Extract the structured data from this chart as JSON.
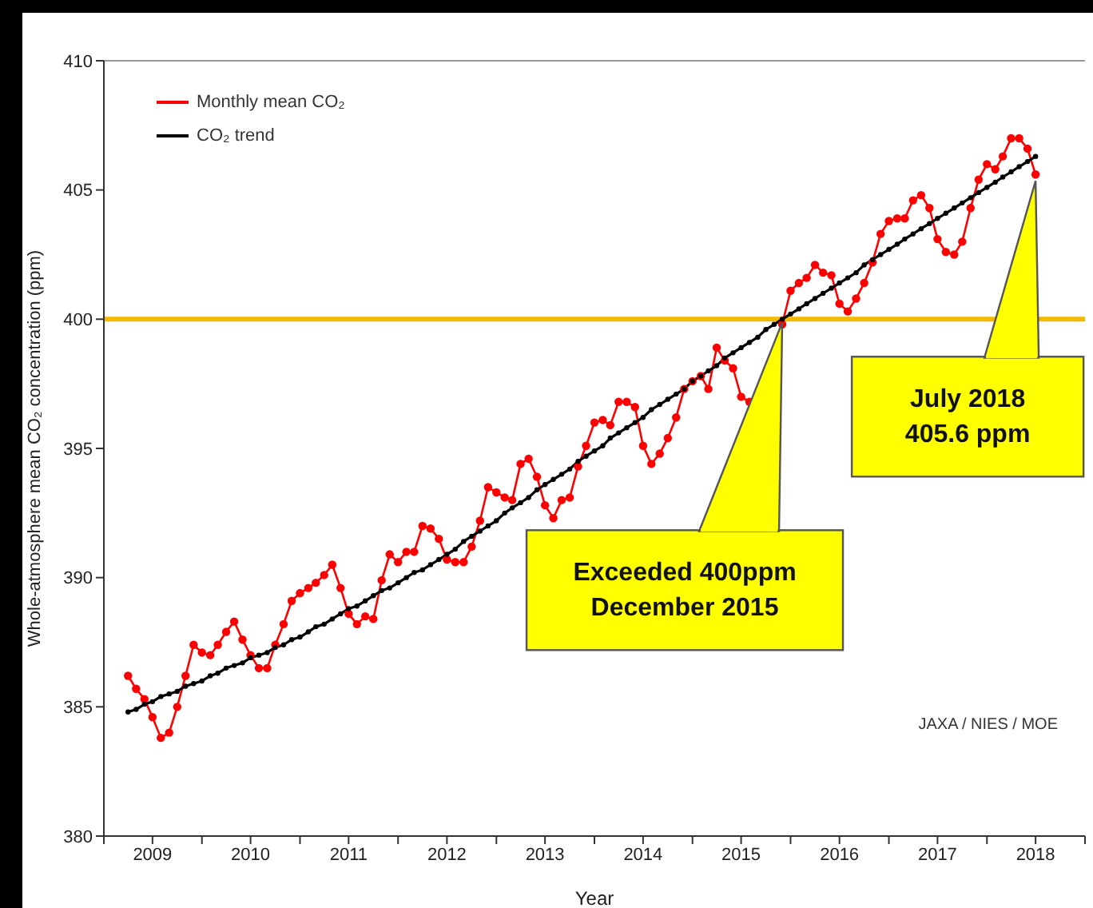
{
  "chart_data": {
    "type": "line",
    "xlabel": "Year",
    "ylabel": "Whole-atmosphere mean CO₂ concentration (ppm)",
    "x": [
      "2009-04",
      "2009-05",
      "2009-06",
      "2009-07",
      "2009-08",
      "2009-09",
      "2009-10",
      "2009-11",
      "2009-12",
      "2010-01",
      "2010-02",
      "2010-03",
      "2010-04",
      "2010-05",
      "2010-06",
      "2010-07",
      "2010-08",
      "2010-09",
      "2010-10",
      "2010-11",
      "2010-12",
      "2011-01",
      "2011-02",
      "2011-03",
      "2011-04",
      "2011-05",
      "2011-06",
      "2011-07",
      "2011-08",
      "2011-09",
      "2011-10",
      "2011-11",
      "2011-12",
      "2012-01",
      "2012-02",
      "2012-03",
      "2012-04",
      "2012-05",
      "2012-06",
      "2012-07",
      "2012-08",
      "2012-09",
      "2012-10",
      "2012-11",
      "2012-12",
      "2013-01",
      "2013-02",
      "2013-03",
      "2013-04",
      "2013-05",
      "2013-06",
      "2013-07",
      "2013-08",
      "2013-09",
      "2013-10",
      "2013-11",
      "2013-12",
      "2014-01",
      "2014-02",
      "2014-03",
      "2014-04",
      "2014-05",
      "2014-06",
      "2014-07",
      "2014-08",
      "2014-09",
      "2014-10",
      "2014-11",
      "2014-12",
      "2015-01",
      "2015-02",
      "2015-03",
      "2015-04",
      "2015-05",
      "2015-06",
      "2015-07",
      "2015-08",
      "2015-09",
      "2015-10",
      "2015-11",
      "2015-12",
      "2016-01",
      "2016-02",
      "2016-03",
      "2016-04",
      "2016-05",
      "2016-06",
      "2016-07",
      "2016-08",
      "2016-09",
      "2016-10",
      "2016-11",
      "2016-12",
      "2017-01",
      "2017-02",
      "2017-03",
      "2017-04",
      "2017-05",
      "2017-06",
      "2017-07",
      "2017-08",
      "2017-09",
      "2017-10",
      "2017-11",
      "2017-12",
      "2018-01",
      "2018-02",
      "2018-03",
      "2018-04",
      "2018-05",
      "2018-06",
      "2018-07"
    ],
    "series": [
      {
        "name": "Monthly mean CO₂",
        "color": "#ff0000",
        "values": [
          386.2,
          385.7,
          385.3,
          384.6,
          383.8,
          384.0,
          385.0,
          386.2,
          387.4,
          387.1,
          387.0,
          387.4,
          387.9,
          388.3,
          387.6,
          387.0,
          386.5,
          386.5,
          387.4,
          388.2,
          389.1,
          389.4,
          389.6,
          389.8,
          390.1,
          390.5,
          389.6,
          388.6,
          388.2,
          388.5,
          388.4,
          389.9,
          390.9,
          390.6,
          391.0,
          391.0,
          392.0,
          391.9,
          391.5,
          390.7,
          390.6,
          390.6,
          391.2,
          392.2,
          393.5,
          393.3,
          393.1,
          393.0,
          394.4,
          394.6,
          393.9,
          392.8,
          392.3,
          393.0,
          393.1,
          394.3,
          395.1,
          396.0,
          396.1,
          395.9,
          396.8,
          396.8,
          396.6,
          395.1,
          394.4,
          394.8,
          395.4,
          396.2,
          397.3,
          397.6,
          397.8,
          397.3,
          398.9,
          398.4,
          398.1,
          397.0,
          396.8,
          null,
          null,
          null,
          399.8,
          401.1,
          401.4,
          401.6,
          402.1,
          401.8,
          401.7,
          400.6,
          400.3,
          400.8,
          401.4,
          402.2,
          403.3,
          403.8,
          403.9,
          403.9,
          404.6,
          404.8,
          404.3,
          403.1,
          402.6,
          402.5,
          403.0,
          404.3,
          405.4,
          406.0,
          405.8,
          406.3,
          407.0,
          407.0,
          406.6,
          405.6
        ]
      },
      {
        "name": "CO₂ trend",
        "color": "#000000",
        "values": [
          384.8,
          384.9,
          385.1,
          385.2,
          385.4,
          385.5,
          385.6,
          385.8,
          385.9,
          386.0,
          386.2,
          386.3,
          386.5,
          386.6,
          386.7,
          386.9,
          387.0,
          387.1,
          387.3,
          387.4,
          387.6,
          387.7,
          387.9,
          388.1,
          388.2,
          388.4,
          388.6,
          388.8,
          388.9,
          389.1,
          389.3,
          389.5,
          389.6,
          389.8,
          390.0,
          390.2,
          390.3,
          390.5,
          390.7,
          390.9,
          391.1,
          391.4,
          391.6,
          391.8,
          392.0,
          392.2,
          392.5,
          392.7,
          392.9,
          393.1,
          393.4,
          393.6,
          393.8,
          394.0,
          394.2,
          394.5,
          394.7,
          394.9,
          395.1,
          395.4,
          395.6,
          395.8,
          396.0,
          396.2,
          396.5,
          396.7,
          396.9,
          397.1,
          397.3,
          397.6,
          397.8,
          398.0,
          398.2,
          398.5,
          398.7,
          398.9,
          399.1,
          399.3,
          399.6,
          399.8,
          400.0,
          400.2,
          400.4,
          400.6,
          400.8,
          401.0,
          401.2,
          401.4,
          401.6,
          401.8,
          402.1,
          402.3,
          402.5,
          402.7,
          402.9,
          403.1,
          403.3,
          403.5,
          403.7,
          403.9,
          404.1,
          404.3,
          404.5,
          404.7,
          404.9,
          405.1,
          405.3,
          405.5,
          405.7,
          405.9,
          406.1,
          406.3
        ]
      }
    ],
    "xlim": [
      "2009-01",
      "2019-01"
    ],
    "xticks": [
      {
        "value": "2009-01",
        "label": null
      },
      {
        "value": "2009-07",
        "label": "2009"
      },
      {
        "value": "2010-01",
        "label": null
      },
      {
        "value": "2010-07",
        "label": "2010"
      },
      {
        "value": "2011-01",
        "label": null
      },
      {
        "value": "2011-07",
        "label": "2011"
      },
      {
        "value": "2012-01",
        "label": null
      },
      {
        "value": "2012-07",
        "label": "2012"
      },
      {
        "value": "2013-01",
        "label": null
      },
      {
        "value": "2013-07",
        "label": "2013"
      },
      {
        "value": "2014-01",
        "label": null
      },
      {
        "value": "2014-07",
        "label": "2014"
      },
      {
        "value": "2015-01",
        "label": null
      },
      {
        "value": "2015-07",
        "label": "2015"
      },
      {
        "value": "2016-01",
        "label": null
      },
      {
        "value": "2016-07",
        "label": "2016"
      },
      {
        "value": "2017-01",
        "label": null
      },
      {
        "value": "2017-07",
        "label": "2017"
      },
      {
        "value": "2018-01",
        "label": null
      },
      {
        "value": "2018-07",
        "label": "2018"
      },
      {
        "value": "2019-01",
        "label": null
      }
    ],
    "ylim": [
      380,
      410
    ],
    "yticks": [
      380,
      385,
      390,
      395,
      400,
      405,
      410
    ],
    "ref_lines": [
      {
        "axis": "y",
        "value": 400,
        "color": "#f5b800"
      }
    ],
    "annotations": [
      {
        "text": "Exceeded 400ppm\nDecember 2015",
        "x": "2015-12",
        "y": 400
      },
      {
        "text": "July 2018\n405.6 ppm",
        "x": "2018-07",
        "y": 405.6
      },
      "JAXA / NIES / MOE"
    ],
    "marker": "circle",
    "line_style": "solid",
    "grid": false,
    "legend": "top left"
  }
}
